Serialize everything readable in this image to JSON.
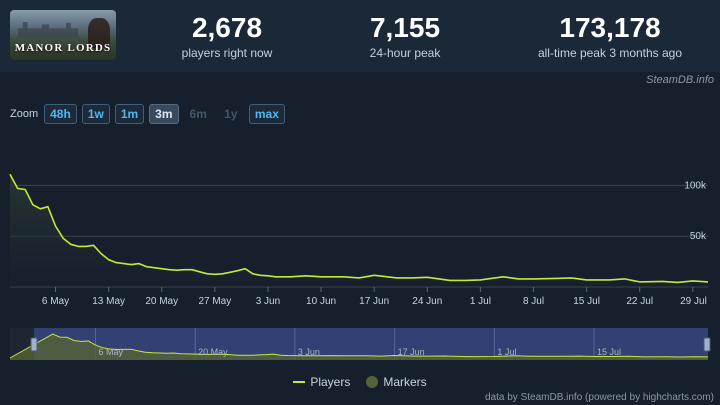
{
  "game": {
    "logo_text": "MANOR LORDS"
  },
  "stats": [
    {
      "value": "2,678",
      "label": "players right now"
    },
    {
      "value": "7,155",
      "label": "24-hour peak"
    },
    {
      "value": "173,178",
      "label": "all-time peak 3 months ago"
    }
  ],
  "credit_top": "SteamDB.info",
  "zoom": {
    "label": "Zoom",
    "buttons": [
      {
        "label": "48h",
        "state": "enabled"
      },
      {
        "label": "1w",
        "state": "enabled"
      },
      {
        "label": "1m",
        "state": "enabled"
      },
      {
        "label": "3m",
        "state": "active"
      },
      {
        "label": "6m",
        "state": "disabled"
      },
      {
        "label": "1y",
        "state": "disabled"
      },
      {
        "label": "max",
        "state": "enabled"
      }
    ]
  },
  "chart_data": {
    "type": "line",
    "title": "",
    "xlabel": "",
    "ylabel": "",
    "ylim": [
      0,
      125000
    ],
    "xlim": [
      "2024-04-30",
      "2024-07-31"
    ],
    "y_ticks": [
      50000,
      100000
    ],
    "y_tick_labels": [
      "50k",
      "100k"
    ],
    "x_ticks": [
      "2024-05-06",
      "2024-05-13",
      "2024-05-20",
      "2024-05-27",
      "2024-06-03",
      "2024-06-10",
      "2024-06-17",
      "2024-06-24",
      "2024-07-01",
      "2024-07-08",
      "2024-07-15",
      "2024-07-22",
      "2024-07-29"
    ],
    "x_tick_labels": [
      "6 May",
      "13 May",
      "20 May",
      "27 May",
      "3 Jun",
      "10 Jun",
      "17 Jun",
      "24 Jun",
      "1 Jul",
      "8 Jul",
      "15 Jul",
      "22 Jul",
      "29 Jul"
    ],
    "grid": true,
    "legend_position": "bottom-center",
    "series": [
      {
        "name": "Players",
        "color": "#c6e83b",
        "x": [
          "2024-04-30",
          "2024-05-01",
          "2024-05-02",
          "2024-05-03",
          "2024-05-04",
          "2024-05-05",
          "2024-05-06",
          "2024-05-07",
          "2024-05-08",
          "2024-05-09",
          "2024-05-10",
          "2024-05-11",
          "2024-05-12",
          "2024-05-13",
          "2024-05-14",
          "2024-05-15",
          "2024-05-16",
          "2024-05-17",
          "2024-05-18",
          "2024-05-19",
          "2024-05-20",
          "2024-05-21",
          "2024-05-22",
          "2024-05-23",
          "2024-05-24",
          "2024-05-25",
          "2024-05-26",
          "2024-05-27",
          "2024-05-28",
          "2024-05-29",
          "2024-05-30",
          "2024-05-31",
          "2024-06-01",
          "2024-06-02",
          "2024-06-03",
          "2024-06-04",
          "2024-06-06",
          "2024-06-08",
          "2024-06-10",
          "2024-06-13",
          "2024-06-15",
          "2024-06-17",
          "2024-06-20",
          "2024-06-22",
          "2024-06-24",
          "2024-06-27",
          "2024-06-29",
          "2024-07-01",
          "2024-07-04",
          "2024-07-06",
          "2024-07-08",
          "2024-07-11",
          "2024-07-13",
          "2024-07-15",
          "2024-07-18",
          "2024-07-20",
          "2024-07-22",
          "2024-07-25",
          "2024-07-27",
          "2024-07-29",
          "2024-07-31"
        ],
        "y": [
          111000,
          97000,
          96000,
          81000,
          77000,
          79000,
          60000,
          48000,
          42000,
          40000,
          40000,
          41000,
          33000,
          27000,
          24000,
          23000,
          22000,
          23000,
          20000,
          19000,
          18000,
          17000,
          16500,
          17000,
          17000,
          15000,
          13000,
          12500,
          13000,
          14500,
          16000,
          18000,
          13000,
          11500,
          11000,
          10000,
          10000,
          11000,
          10000,
          10000,
          9000,
          11500,
          9000,
          9000,
          9500,
          6500,
          6500,
          7000,
          10000,
          8000,
          8000,
          8500,
          9000,
          7000,
          7000,
          8000,
          5000,
          5500,
          4500,
          6000,
          5000
        ]
      }
    ],
    "markers": {
      "name": "Markers",
      "color": "#566338"
    }
  },
  "navigator": {
    "labels": [
      "6 May",
      "20 May",
      "3 Jun",
      "17 Jun",
      "1 Jul",
      "15 Jul"
    ]
  },
  "legend": {
    "players": "Players",
    "markers": "Markers"
  },
  "credit_bottom": "data by SteamDB.info (powered by highcharts.com)"
}
